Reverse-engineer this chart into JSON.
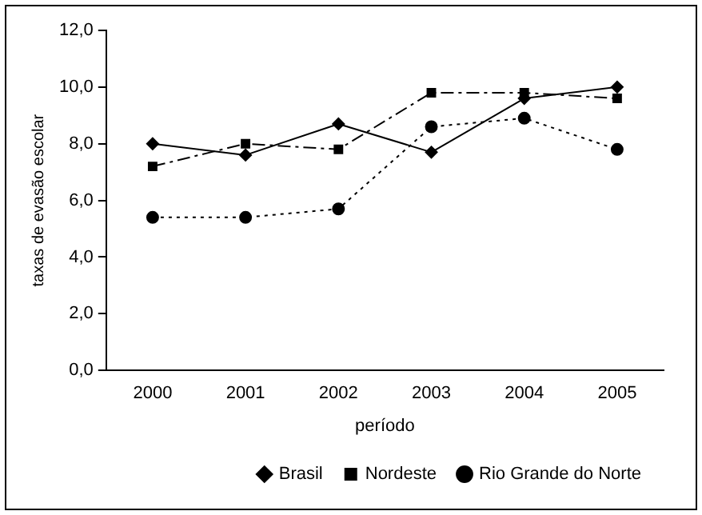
{
  "chart_data": {
    "type": "line",
    "xlabel": "período",
    "ylabel": "taxas de evasão escolar",
    "categories": [
      "2000",
      "2001",
      "2002",
      "2003",
      "2004",
      "2005"
    ],
    "series": [
      {
        "name": "Brasil",
        "color": "#000000",
        "marker": "diamond",
        "line_style": "solid",
        "values": [
          8.0,
          7.6,
          8.7,
          7.7,
          9.6,
          10.0
        ]
      },
      {
        "name": "Nordeste",
        "color": "#000000",
        "marker": "square",
        "line_style": "dashed",
        "values": [
          7.2,
          8.0,
          7.8,
          9.8,
          9.8,
          9.6
        ]
      },
      {
        "name": "Rio Grande do Norte",
        "color": "#000000",
        "marker": "circle",
        "line_style": "dotted",
        "values": [
          5.4,
          5.4,
          5.7,
          8.6,
          8.9,
          7.8
        ]
      }
    ],
    "ylim": [
      0,
      12
    ],
    "yticks": [
      {
        "value": 0,
        "label": "0,0"
      },
      {
        "value": 2,
        "label": "2,0"
      },
      {
        "value": 4,
        "label": "4,0"
      },
      {
        "value": 6,
        "label": "6,0"
      },
      {
        "value": 8,
        "label": "8,0"
      },
      {
        "value": 10,
        "label": "10,0"
      },
      {
        "value": 12,
        "label": "12,0"
      }
    ],
    "grid": false,
    "legend": "bottom"
  }
}
